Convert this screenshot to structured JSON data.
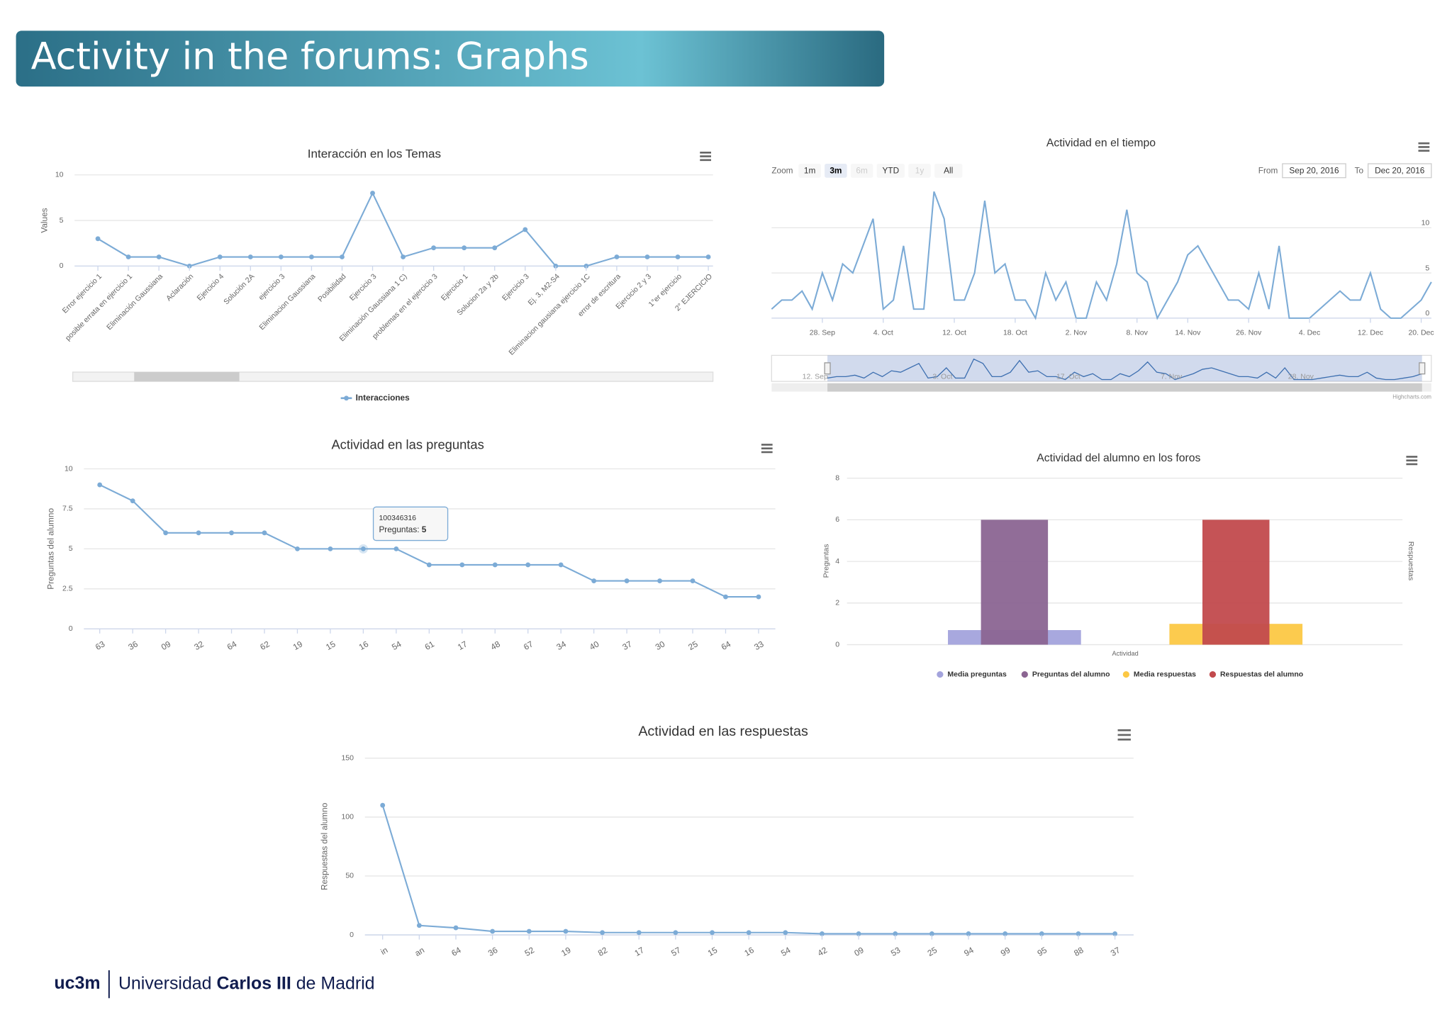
{
  "title": "Activity in the forums: Graphs",
  "footer": {
    "logo": "uc3m",
    "name_start": "Universidad",
    "name_bold": "Carlos III",
    "name_end": "de Madrid"
  },
  "chart_data": [
    {
      "type": "line",
      "title": "Interacción en los Temas",
      "ylabel": "Values",
      "categories": [
        "Error ejercicio 1",
        "posible errata en ejercicio 1",
        "Eliminación Gaussiana",
        "Aclaración",
        "Ejercicio 4",
        "Solución 2A",
        "ejercicio 3",
        "Eliminacion Gaussiana",
        "Posibilidad",
        "Ejercicio 3",
        "Eliminación Gaussiana 1 C)",
        "problemas en el ejercicio 3",
        "Ejercicio 1",
        "Solucion 2a y 2b",
        "Ejercicio 3",
        "Ej. 3, M2-S4",
        "Eliminacion gausiana ejercicio 1C",
        "error de escritura",
        "Ejercicio 2 y 3",
        "1°er ejercicio",
        "2° EJERCICIO"
      ],
      "series": [
        {
          "name": "Interacciones",
          "color": "#7cabd6",
          "values": [
            3,
            1,
            1,
            0,
            1,
            1,
            1,
            1,
            1,
            8,
            1,
            2,
            2,
            2,
            4,
            0,
            0,
            1,
            1,
            1,
            1
          ]
        }
      ],
      "ylim": [
        0,
        10
      ],
      "yticks": [
        0,
        5,
        10
      ],
      "grid": true,
      "legend": "bottom"
    },
    {
      "type": "line",
      "title": "Actividad en el tiempo",
      "zoom_label": "Zoom",
      "zoom_buttons": [
        "1m",
        "3m",
        "6m",
        "YTD",
        "1y",
        "All"
      ],
      "zoom_selected": "3m",
      "zoom_disabled": [
        "6m",
        "1y"
      ],
      "range_from_label": "From",
      "range_from": "Sep 20, 2016",
      "range_to_label": "To",
      "range_to": "Dec 20, 2016",
      "credits": "Highcharts.com",
      "navigator_labels": [
        "12. Sep",
        "3. Oct",
        "17. Oct",
        "7. Nov",
        "28. Nov"
      ],
      "categories": [
        null,
        null,
        null,
        null,
        null,
        "28. Sep",
        null,
        null,
        null,
        null,
        null,
        "4. Oct",
        null,
        null,
        null,
        null,
        null,
        null,
        "12. Oct",
        null,
        null,
        null,
        null,
        null,
        "18. Oct",
        null,
        null,
        null,
        null,
        null,
        "2. Nov",
        null,
        null,
        null,
        null,
        null,
        "8. Nov",
        null,
        null,
        null,
        null,
        "14. Nov",
        null,
        null,
        null,
        null,
        null,
        "26. Nov",
        null,
        null,
        null,
        null,
        null,
        "4. Dec",
        null,
        null,
        null,
        null,
        null,
        "12. Dec",
        null,
        null,
        null,
        null,
        "20. Dec",
        null
      ],
      "series": [
        {
          "name": null,
          "color": "#7cabd6",
          "values": [
            1,
            2,
            2,
            3,
            1,
            5,
            2,
            6,
            5,
            8,
            11,
            1,
            2,
            8,
            1,
            1,
            14,
            11,
            2,
            2,
            5,
            13,
            5,
            6,
            2,
            2,
            0,
            5,
            2,
            4,
            0,
            0,
            4,
            2,
            6,
            12,
            5,
            4,
            0,
            2,
            4,
            7,
            8,
            6,
            4,
            2,
            2,
            1,
            5,
            1,
            8,
            0,
            0,
            0,
            1,
            2,
            3,
            2,
            2,
            5,
            1,
            0,
            0,
            1,
            2,
            4
          ]
        }
      ],
      "ylim": [
        0,
        14
      ],
      "yticks": [
        0,
        5,
        10
      ],
      "grid": true
    },
    {
      "type": "line",
      "title": "Actividad en las preguntas",
      "ylabel": "Preguntas del alumno",
      "categories": [
        "63",
        "36",
        "09",
        "32",
        "64",
        "62",
        "19",
        "15",
        "16",
        "54",
        "61",
        "17",
        "48",
        "67",
        "34",
        "40",
        "37",
        "30",
        "25",
        "64",
        "33"
      ],
      "series": [
        {
          "name": "Preguntas",
          "color": "#7cabd6",
          "values": [
            9,
            8,
            6,
            6,
            6,
            6,
            5,
            5,
            5,
            5,
            4,
            4,
            4,
            4,
            4,
            3,
            3,
            3,
            3,
            2,
            2
          ]
        }
      ],
      "ylim": [
        0,
        10
      ],
      "yticks": [
        0,
        2.5,
        5,
        7.5,
        10
      ],
      "grid": true,
      "tooltip": {
        "category": "100346316",
        "label": "Preguntas:",
        "value": 5
      }
    },
    {
      "type": "bar",
      "title": "Actividad del alumno en los foros",
      "ylabel": "Preguntas",
      "y2label": "Respuestas",
      "xlabel": "Actividad",
      "categories": [
        "Actividad"
      ],
      "series": [
        {
          "name": "Media preguntas",
          "color": "#a3a3dc",
          "values": [
            0.7
          ]
        },
        {
          "name": "Preguntas del alumno",
          "color": "#8b6592",
          "values": [
            6
          ]
        },
        {
          "name": "Media respuestas",
          "color": "#fcc844",
          "values": [
            1
          ]
        },
        {
          "name": "Respuestas del alumno",
          "color": "#c24a4d",
          "values": [
            6
          ]
        }
      ],
      "ylim": [
        0,
        8
      ],
      "yticks": [
        0,
        2,
        4,
        6,
        8
      ],
      "grid": true,
      "legend": "bottom"
    },
    {
      "type": "line",
      "title": "Actividad en las respuestas",
      "ylabel": "Respuestas del alumno",
      "categories": [
        "in",
        "an",
        "64",
        "36",
        "52",
        "19",
        "82",
        "17",
        "57",
        "15",
        "16",
        "54",
        "42",
        "09",
        "53",
        "25",
        "94",
        "99",
        "95",
        "88",
        "37"
      ],
      "series": [
        {
          "name": "Respuestas",
          "color": "#7cabd6",
          "values": [
            110,
            8,
            6,
            3,
            3,
            3,
            2,
            2,
            2,
            2,
            2,
            2,
            1,
            1,
            1,
            1,
            1,
            1,
            1,
            1,
            1
          ]
        }
      ],
      "ylim": [
        0,
        150
      ],
      "yticks": [
        0,
        50,
        100,
        150
      ],
      "grid": true
    }
  ]
}
